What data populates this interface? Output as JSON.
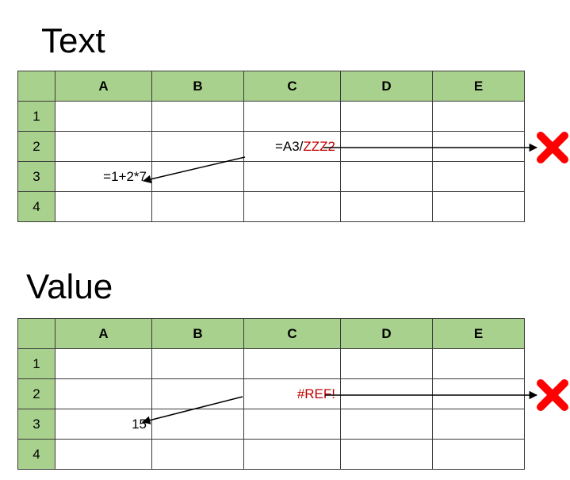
{
  "sections": [
    {
      "heading": "Text",
      "columns": [
        "A",
        "B",
        "C",
        "D",
        "E"
      ],
      "rows": [
        "1",
        "2",
        "3",
        "4"
      ],
      "cell_c2_prefix": "=A3/",
      "cell_c2_ref": "ZZZ2",
      "cell_a3": "=1+2*7"
    },
    {
      "heading": "Value",
      "columns": [
        "A",
        "B",
        "C",
        "D",
        "E"
      ],
      "rows": [
        "1",
        "2",
        "3",
        "4"
      ],
      "cell_c2": "#REF!",
      "cell_a3": "15"
    }
  ],
  "colors": {
    "header_fill": "#a9d18e",
    "error_text": "#c00000",
    "cross": "#ff0000"
  },
  "icons": [
    "red-cross-icon",
    "red-cross-icon"
  ]
}
